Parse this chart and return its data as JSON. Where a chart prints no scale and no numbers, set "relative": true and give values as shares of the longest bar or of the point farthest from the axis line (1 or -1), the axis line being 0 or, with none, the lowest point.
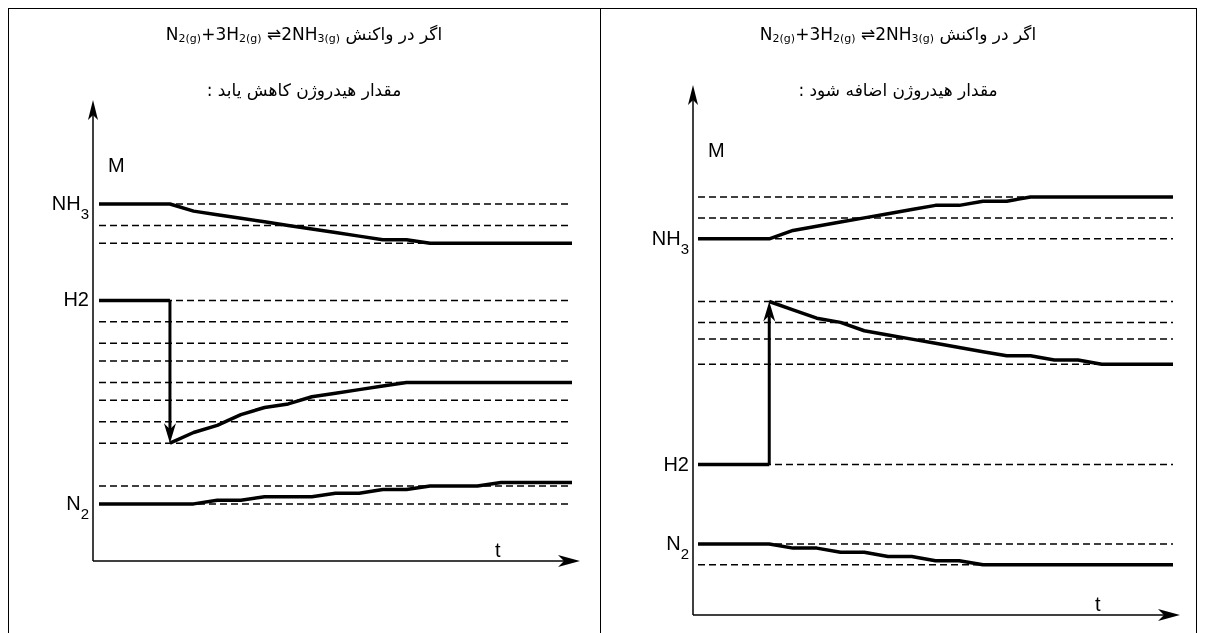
{
  "chart_data": [
    {
      "type": "line",
      "relative": true,
      "title": "اگر در واکنش N$_{2(g)}$+3H$_{2(g)}$ ⇌2NH$_{3(g)}$",
      "subtitle": "مقدار هیدروژن کاهش یابد :",
      "xlabel": "t",
      "ylabel": "M",
      "categories": [
        null,
        null,
        null,
        null,
        null,
        null,
        null,
        null,
        null,
        null,
        null,
        null,
        null,
        null,
        null,
        null,
        null,
        null,
        null,
        null,
        null
      ],
      "series": [
        {
          "name": "NH$_{3}$",
          "color": "#000000",
          "values": [
            1,
            1,
            1,
            1,
            0.98,
            0.97,
            0.96,
            0.95,
            0.94,
            0.93,
            0.92,
            0.91,
            0.9,
            0.9,
            0.89,
            0.89,
            0.89,
            0.89,
            0.89,
            0.89,
            0.89
          ]
        },
        {
          "name": "H2",
          "color": "#000000",
          "values": [
            0.73,
            0.73,
            0.73,
            0.73,
            null,
            null,
            null,
            null,
            null,
            null,
            null,
            null,
            null,
            null,
            null,
            null,
            null,
            null,
            null,
            null,
            null
          ]
        },
        {
          "color": "#000000",
          "values": [
            null,
            null,
            null,
            0.33,
            0.36,
            0.38,
            0.41,
            0.43,
            0.44,
            0.46,
            0.47,
            0.48,
            0.49,
            0.5,
            0.5,
            0.5,
            0.5,
            0.5,
            0.5,
            0.5,
            0.5
          ]
        },
        {
          "name": "N$_{2}$",
          "color": "#000000",
          "values": [
            0.16,
            0.16,
            0.16,
            0.16,
            0.16,
            0.17,
            0.17,
            0.18,
            0.18,
            0.18,
            0.19,
            0.19,
            0.2,
            0.2,
            0.21,
            0.21,
            0.21,
            0.22,
            0.22,
            0.22,
            0.22
          ]
        }
      ],
      "ref_lines": [
        {
          "axis": "y",
          "value": 1,
          "color": "#000000",
          "line_style": "dashed"
        },
        {
          "axis": "y",
          "value": 0.94,
          "color": "#000000",
          "line_style": "dashed"
        },
        {
          "axis": "y",
          "value": 0.89,
          "color": "#000000",
          "line_style": "dashed"
        },
        {
          "axis": "y",
          "value": 0.73,
          "color": "#000000",
          "line_style": "dashed"
        },
        {
          "axis": "y",
          "value": 0.67,
          "color": "#000000",
          "line_style": "dashed"
        },
        {
          "axis": "y",
          "value": 0.61,
          "color": "#000000",
          "line_style": "dashed"
        },
        {
          "axis": "y",
          "value": 0.56,
          "color": "#000000",
          "line_style": "dashed"
        },
        {
          "axis": "y",
          "value": 0.5,
          "color": "#000000",
          "line_style": "dashed"
        },
        {
          "axis": "y",
          "value": 0.45,
          "color": "#000000",
          "line_style": "dashed"
        },
        {
          "axis": "y",
          "value": 0.39,
          "color": "#000000",
          "line_style": "dashed"
        },
        {
          "axis": "y",
          "value": 0.33,
          "color": "#000000",
          "line_style": "dashed"
        },
        {
          "axis": "y",
          "value": 0.21,
          "color": "#000000",
          "line_style": "dashed"
        },
        {
          "axis": "y",
          "value": 0.16,
          "color": "#000000",
          "line_style": "dashed"
        }
      ]
    },
    {
      "type": "line",
      "relative": true,
      "title": "اگر در واکنش N$_{2(g)}$+3H$_{2(g)}$ ⇌2NH$_{3(g)}$",
      "subtitle": "مقدار هیدروژن اضافه شود :",
      "xlabel": "t",
      "ylabel": "M",
      "categories": [
        null,
        null,
        null,
        null,
        null,
        null,
        null,
        null,
        null,
        null,
        null,
        null,
        null,
        null,
        null,
        null,
        null,
        null,
        null,
        null,
        null
      ],
      "series": [
        {
          "name": "NH$_{3}$",
          "color": "#000000",
          "values": [
            0.9,
            0.9,
            0.9,
            0.9,
            0.92,
            0.93,
            0.94,
            0.95,
            0.96,
            0.97,
            0.98,
            0.98,
            0.99,
            0.99,
            1,
            1,
            1,
            1,
            1,
            1,
            1
          ]
        },
        {
          "name": "H2",
          "color": "#000000",
          "values": [
            0.36,
            0.36,
            0.36,
            0.36,
            null,
            null,
            null,
            null,
            null,
            null,
            null,
            null,
            null,
            null,
            null,
            null,
            null,
            null,
            null,
            null,
            null
          ]
        },
        {
          "color": "#000000",
          "values": [
            null,
            null,
            null,
            0.75,
            0.73,
            0.71,
            0.7,
            0.68,
            0.67,
            0.66,
            0.65,
            0.64,
            0.63,
            0.62,
            0.62,
            0.61,
            0.61,
            0.6,
            0.6,
            0.6,
            0.6
          ]
        },
        {
          "name": "N$_{2}$",
          "color": "#000000",
          "values": [
            0.17,
            0.17,
            0.17,
            0.17,
            0.16,
            0.16,
            0.15,
            0.15,
            0.14,
            0.14,
            0.13,
            0.13,
            0.12,
            0.12,
            0.12,
            0.12,
            0.12,
            0.12,
            0.12,
            0.12,
            0.12
          ]
        }
      ],
      "ref_lines": [
        {
          "axis": "y",
          "value": 1,
          "color": "#000000",
          "line_style": "dashed"
        },
        {
          "axis": "y",
          "value": 0.95,
          "color": "#000000",
          "line_style": "dashed"
        },
        {
          "axis": "y",
          "value": 0.9,
          "color": "#000000",
          "line_style": "dashed"
        },
        {
          "axis": "y",
          "value": 0.75,
          "color": "#000000",
          "line_style": "dashed"
        },
        {
          "axis": "y",
          "value": 0.7,
          "color": "#000000",
          "line_style": "dashed"
        },
        {
          "axis": "y",
          "value": 0.66,
          "color": "#000000",
          "line_style": "dashed"
        },
        {
          "axis": "y",
          "value": 0.6,
          "color": "#000000",
          "line_style": "dashed"
        },
        {
          "axis": "y",
          "value": 0.36,
          "color": "#000000",
          "line_style": "dashed"
        },
        {
          "axis": "y",
          "value": 0.17,
          "color": "#000000",
          "line_style": "dashed"
        },
        {
          "axis": "y",
          "value": 0.12,
          "color": "#000000",
          "line_style": "dashed"
        }
      ]
    }
  ]
}
